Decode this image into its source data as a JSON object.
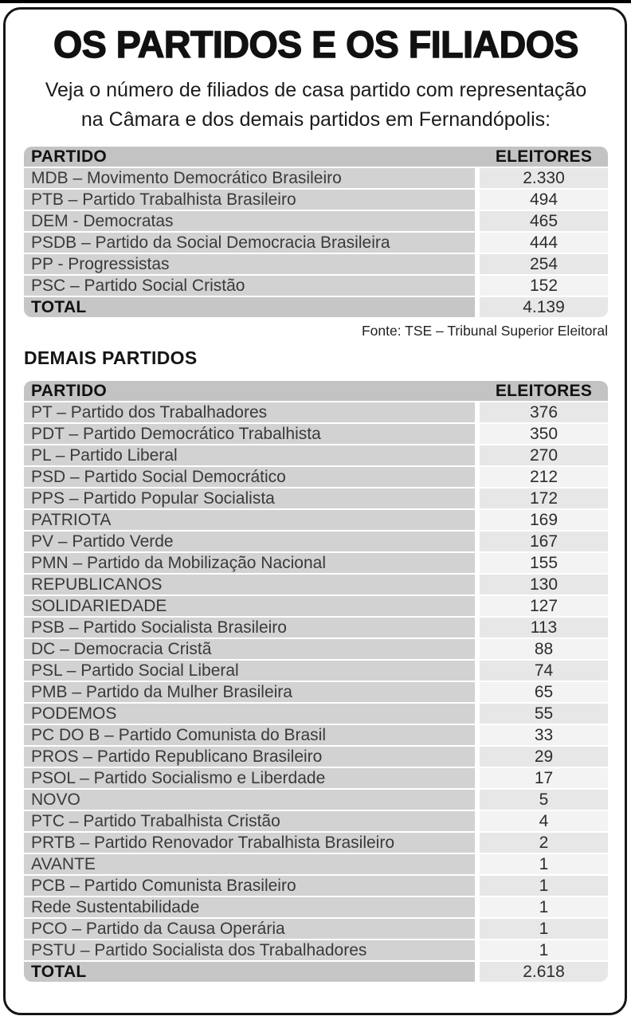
{
  "page": {
    "title": "OS PARTIDOS E OS FILIADOS",
    "subtitle_line1": "Veja o número de filiados de casa partido com representação",
    "subtitle_line2": "na Câmara e dos demais partidos em Fernandópolis:",
    "source": "Fonte: TSE – Tribunal Superior Eleitoral",
    "section2_title": "DEMAIS PARTIDOS"
  },
  "columns": {
    "party": "PARTIDO",
    "voters": "ELEITORES"
  },
  "table1": {
    "rows": [
      {
        "party": "MDB – Movimento Democrático Brasileiro",
        "voters": "2.330"
      },
      {
        "party": "PTB – Partido Trabalhista Brasileiro",
        "voters": "494"
      },
      {
        "party": "DEM - Democratas",
        "voters": "465"
      },
      {
        "party": "PSDB – Partido da Social Democracia Brasileira",
        "voters": "444"
      },
      {
        "party": "PP - Progressistas",
        "voters": "254"
      },
      {
        "party": "PSC – Partido Social Cristão",
        "voters": "152"
      }
    ],
    "total_label": "TOTAL",
    "total_value": "4.139"
  },
  "table2": {
    "rows": [
      {
        "party": "PT – Partido dos Trabalhadores",
        "voters": "376"
      },
      {
        "party": "PDT – Partido Democrático Trabalhista",
        "voters": "350"
      },
      {
        "party": "PL – Partido Liberal",
        "voters": "270"
      },
      {
        "party": "PSD – Partido Social Democrático",
        "voters": "212"
      },
      {
        "party": "PPS – Partido Popular Socialista",
        "voters": "172"
      },
      {
        "party": "PATRIOTA",
        "voters": "169"
      },
      {
        "party": "PV – Partido Verde",
        "voters": "167"
      },
      {
        "party": "PMN – Partido da Mobilização Nacional",
        "voters": "155"
      },
      {
        "party": "REPUBLICANOS",
        "voters": "130"
      },
      {
        "party": "SOLIDARIEDADE",
        "voters": "127"
      },
      {
        "party": "PSB – Partido Socialista Brasileiro",
        "voters": "113"
      },
      {
        "party": "DC – Democracia Cristã",
        "voters": "88"
      },
      {
        "party": "PSL – Partido Social Liberal",
        "voters": "74"
      },
      {
        "party": "PMB – Partido da Mulher Brasileira",
        "voters": "65"
      },
      {
        "party": "PODEMOS",
        "voters": "55"
      },
      {
        "party": "PC DO B – Partido Comunista do Brasil",
        "voters": "33"
      },
      {
        "party": "PROS – Partido Republicano Brasileiro",
        "voters": "29"
      },
      {
        "party": "PSOL – Partido Socialismo e Liberdade",
        "voters": "17"
      },
      {
        "party": "NOVO",
        "voters": "5"
      },
      {
        "party": "PTC – Partido Trabalhista Cristão",
        "voters": "4"
      },
      {
        "party": "PRTB – Partido Renovador Trabalhista Brasileiro",
        "voters": "2"
      },
      {
        "party": "AVANTE",
        "voters": "1"
      },
      {
        "party": "PCB – Partido Comunista Brasileiro",
        "voters": "1"
      },
      {
        "party": "Rede Sustentabilidade",
        "voters": "1"
      },
      {
        "party": "PCO – Partido da Causa Operária",
        "voters": "1"
      },
      {
        "party": "PSTU – Partido Socialista dos Trabalhadores",
        "voters": "1"
      }
    ],
    "total_label": "TOTAL",
    "total_value": "2.618"
  },
  "colors": {
    "header_gray": "#c3c3c3",
    "party_cell_gray": "#d2d2d2",
    "voters_cell_dark": "#e7e7e7",
    "voters_cell_light": "#f3f3f3",
    "total_cell_gray": "#c6c6c6",
    "frame_border": "#151515",
    "text_dark": "#3a3a3a"
  },
  "chart_data": [
    {
      "type": "table",
      "title": "OS PARTIDOS E OS FILIADOS — partidos com representação na Câmara",
      "columns": [
        "PARTIDO",
        "ELEITORES"
      ],
      "rows": [
        [
          "MDB – Movimento Democrático Brasileiro",
          2330
        ],
        [
          "PTB – Partido Trabalhista Brasileiro",
          494
        ],
        [
          "DEM - Democratas",
          465
        ],
        [
          "PSDB – Partido da Social Democracia Brasileira",
          444
        ],
        [
          "PP - Progressistas",
          254
        ],
        [
          "PSC – Partido Social Cristão",
          152
        ]
      ],
      "total": 4139,
      "source": "Fonte: TSE – Tribunal Superior Eleitoral"
    },
    {
      "type": "table",
      "title": "DEMAIS PARTIDOS",
      "columns": [
        "PARTIDO",
        "ELEITORES"
      ],
      "rows": [
        [
          "PT – Partido dos Trabalhadores",
          376
        ],
        [
          "PDT – Partido Democrático Trabalhista",
          350
        ],
        [
          "PL – Partido Liberal",
          270
        ],
        [
          "PSD – Partido Social Democrático",
          212
        ],
        [
          "PPS – Partido Popular Socialista",
          172
        ],
        [
          "PATRIOTA",
          169
        ],
        [
          "PV – Partido Verde",
          167
        ],
        [
          "PMN – Partido da Mobilização Nacional",
          155
        ],
        [
          "REPUBLICANOS",
          130
        ],
        [
          "SOLIDARIEDADE",
          127
        ],
        [
          "PSB – Partido Socialista Brasileiro",
          113
        ],
        [
          "DC – Democracia Cristã",
          88
        ],
        [
          "PSL – Partido Social Liberal",
          74
        ],
        [
          "PMB – Partido da Mulher Brasileira",
          65
        ],
        [
          "PODEMOS",
          55
        ],
        [
          "PC DO B – Partido Comunista do Brasil",
          33
        ],
        [
          "PROS – Partido Republicano Brasileiro",
          29
        ],
        [
          "PSOL – Partido Socialismo e Liberdade",
          17
        ],
        [
          "NOVO",
          5
        ],
        [
          "PTC – Partido Trabalhista Cristão",
          4
        ],
        [
          "PRTB – Partido Renovador Trabalhista Brasileiro",
          2
        ],
        [
          "AVANTE",
          1
        ],
        [
          "PCB – Partido Comunista Brasileiro",
          1
        ],
        [
          "Rede Sustentabilidade",
          1
        ],
        [
          "PCO – Partido da Causa Operária",
          1
        ],
        [
          "PSTU – Partido Socialista dos Trabalhadores",
          1
        ]
      ],
      "total": 2618
    }
  ]
}
